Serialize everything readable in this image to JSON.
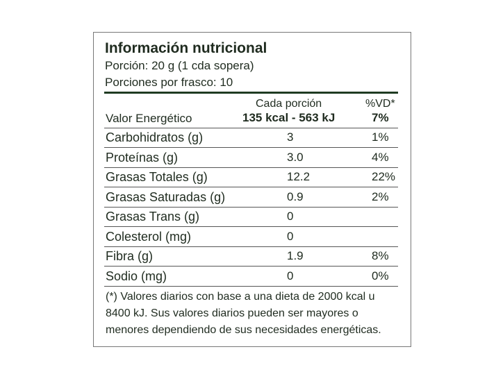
{
  "header": {
    "title": "Información nutricional",
    "serving": "Porción: 20 g (1 cda sopera)",
    "servings_per_container": "Porciones por frasco: 10"
  },
  "table": {
    "column_headers": {
      "per_serving": "Cada porción",
      "dv": "%VD*"
    },
    "energy": {
      "label": "Valor Energético",
      "value": "135 kcal - 563 kJ",
      "dv": "7%"
    },
    "rows": [
      {
        "label": "Carbohidratos (g)",
        "value": "3",
        "dv": "1%"
      },
      {
        "label": "Proteínas (g)",
        "value": "3.0",
        "dv": "4%"
      },
      {
        "label": "Grasas Totales (g)",
        "value": "12.2",
        "dv": "22%"
      },
      {
        "label": "Grasas Saturadas (g)",
        "value": "0.9",
        "dv": "2%"
      },
      {
        "label": "Grasas Trans (g)",
        "value": "0"
      },
      {
        "label": "Colesterol (mg)",
        "value": "0"
      },
      {
        "label": "Fibra (g)",
        "value": "1.9",
        "dv": "8%"
      },
      {
        "label": "Sodio (mg)",
        "value": "0",
        "dv": "0%"
      }
    ]
  },
  "footnote": [
    "(*) Valores diarios con base a una dieta de 2000 kcal u",
    "8400 kJ. Sus valores diarios pueden ser mayores o",
    "menores dependiendo de sus necesidades energéticas."
  ]
}
